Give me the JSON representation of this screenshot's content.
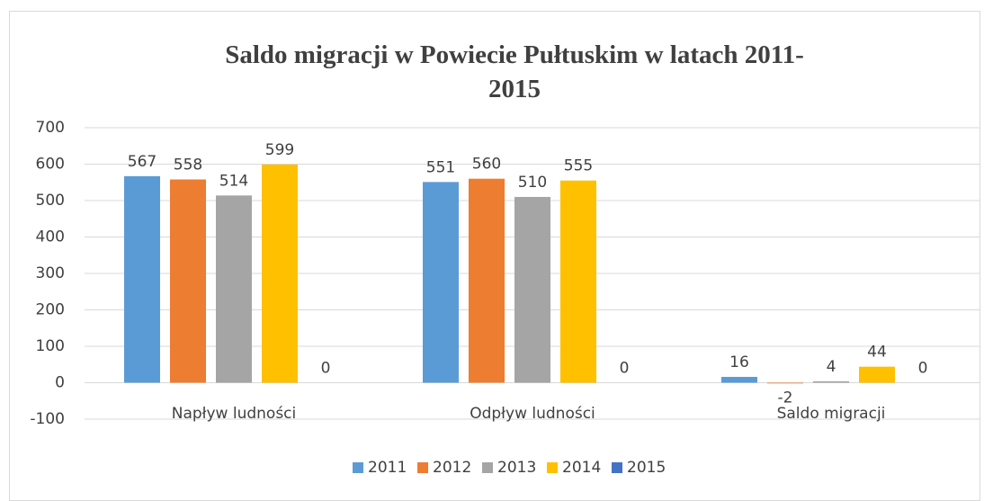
{
  "chart_data": {
    "type": "bar",
    "title": "Saldo migracji w Powiecie Pułtuskim w latach 2011-2015",
    "categories": [
      "Napływ ludności",
      "Odpływ ludności",
      "Saldo migracji"
    ],
    "series": [
      {
        "name": "2011",
        "color": "#5b9bd5",
        "values": [
          567,
          551,
          16
        ]
      },
      {
        "name": "2012",
        "color": "#ed7d31",
        "values": [
          558,
          560,
          -2
        ]
      },
      {
        "name": "2013",
        "color": "#a5a5a5",
        "values": [
          514,
          510,
          4
        ]
      },
      {
        "name": "2014",
        "color": "#ffc000",
        "values": [
          599,
          555,
          44
        ]
      },
      {
        "name": "2015",
        "color": "#4472c4",
        "values": [
          0,
          0,
          0
        ]
      }
    ],
    "ylim": [
      -100,
      700
    ],
    "yticks": [
      -100,
      0,
      100,
      200,
      300,
      400,
      500,
      600,
      700
    ],
    "grid": true,
    "legend": "bottom"
  }
}
